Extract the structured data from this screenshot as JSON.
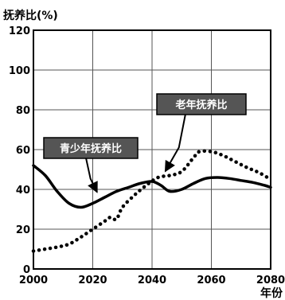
{
  "chart_data": {
    "type": "line",
    "title": "",
    "ylabel": "抚养比(%)",
    "xlabel": "年份",
    "xlim": [
      2000,
      2080
    ],
    "ylim": [
      0,
      120
    ],
    "x_ticks": [
      2000,
      2020,
      2040,
      2060,
      2080
    ],
    "y_ticks": [
      0,
      20,
      40,
      60,
      80,
      100,
      120
    ],
    "grid": true,
    "series": [
      {
        "name": "青少年抚养比",
        "style": "solid",
        "color": "#000000",
        "x": [
          2000,
          2004,
          2008,
          2012,
          2016,
          2020,
          2024,
          2028,
          2032,
          2036,
          2040,
          2043,
          2046,
          2050,
          2054,
          2058,
          2062,
          2066,
          2070,
          2074,
          2078,
          2080
        ],
        "y": [
          52,
          47,
          39,
          33,
          31,
          33,
          36,
          39,
          41,
          43,
          44,
          42,
          39,
          40,
          43,
          45.5,
          46,
          45.5,
          44.5,
          43.5,
          42,
          41
        ]
      },
      {
        "name": "老年抚养比",
        "style": "dotted",
        "color": "#000000",
        "x": [
          2000,
          2004,
          2008,
          2012,
          2016,
          2020,
          2024,
          2026,
          2028,
          2030,
          2034,
          2038,
          2042,
          2046,
          2050,
          2054,
          2056,
          2060,
          2064,
          2068,
          2072,
          2076,
          2080
        ],
        "y": [
          9,
          10,
          11,
          12.5,
          16,
          20,
          24,
          26,
          25,
          31,
          37,
          42,
          46,
          47,
          49,
          56,
          59,
          59,
          57,
          54,
          51,
          48.5,
          45
        ]
      }
    ],
    "annotations": [
      {
        "text": "青少年抚养比",
        "points_to": {
          "x": 2022,
          "y": 37
        }
      },
      {
        "text": "老年抚养比",
        "points_to": {
          "x": 2045,
          "y": 47.5
        }
      }
    ]
  }
}
